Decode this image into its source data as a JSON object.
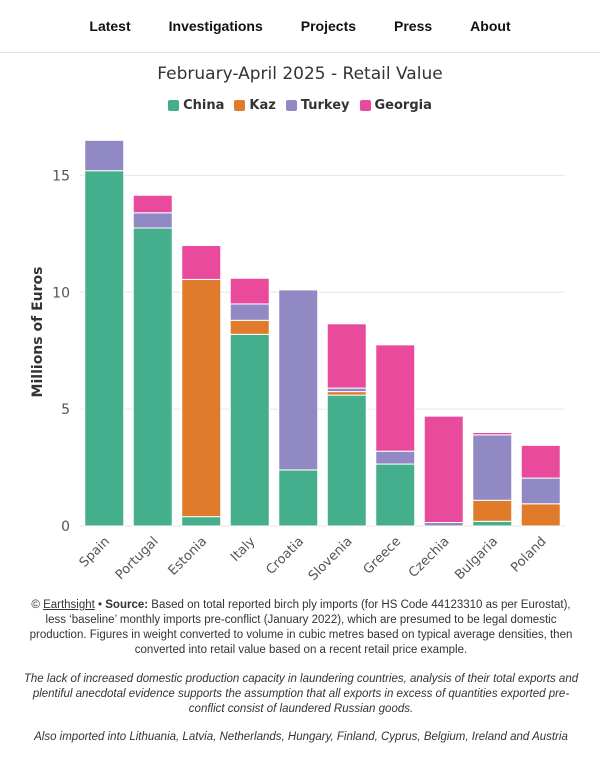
{
  "nav": {
    "items": [
      "Latest",
      "Investigations",
      "Projects",
      "Press",
      "About"
    ]
  },
  "chart_data": {
    "type": "bar",
    "stacked": true,
    "title": "February-April 2025 - Retail Value",
    "ylabel": "Millions of Euros",
    "xlabel": "",
    "ylim": [
      0,
      16.6
    ],
    "yticks": [
      0,
      5,
      10,
      15
    ],
    "grid": true,
    "legend_position": "top",
    "categories": [
      "Spain",
      "Portugal",
      "Estonia",
      "Italy",
      "Croatia",
      "Slovenia",
      "Greece",
      "Czechia",
      "Bulgaria",
      "Poland"
    ],
    "series": [
      {
        "name": "China",
        "color": "#45ae8d",
        "values": [
          15.2,
          12.75,
          0.4,
          8.2,
          2.4,
          5.6,
          2.65,
          0.0,
          0.2,
          0.0
        ]
      },
      {
        "name": "Kaz",
        "color": "#e07b2b",
        "values": [
          0.0,
          0.0,
          10.15,
          0.6,
          0.0,
          0.15,
          0.0,
          0.0,
          0.9,
          0.95
        ]
      },
      {
        "name": "Turkey",
        "color": "#9189c4",
        "values": [
          1.3,
          0.65,
          0.0,
          0.7,
          7.7,
          0.15,
          0.55,
          0.15,
          2.8,
          1.1
        ]
      },
      {
        "name": "Georgia",
        "color": "#e94a9b",
        "values": [
          0.0,
          0.75,
          1.45,
          1.1,
          0.0,
          2.75,
          4.55,
          4.55,
          0.1,
          1.4
        ]
      }
    ]
  },
  "source": {
    "copyright": "©",
    "org": "Earthsight",
    "bullet": " • ",
    "label": "Source:",
    "text": " Based on total reported birch ply imports (for HS Code 44123310 as per Eurostat), less ‘baseline’ monthly imports pre-conflict (January 2022), which are presumed to be legal domestic production. Figures in weight converted to volume in cubic metres based on typical average densities, then converted into retail value based on a recent retail price example."
  },
  "note": "The lack of increased domestic production capacity in laundering countries, analysis of their total exports and plentiful anecdotal evidence supports the assumption that all exports in excess of quantities exported pre-conflict consist of laundered Russian goods.",
  "also": "Also imported into Lithuania, Latvia, Netherlands, Hungary, Finland, Cyprus, Belgium, Ireland and Austria"
}
